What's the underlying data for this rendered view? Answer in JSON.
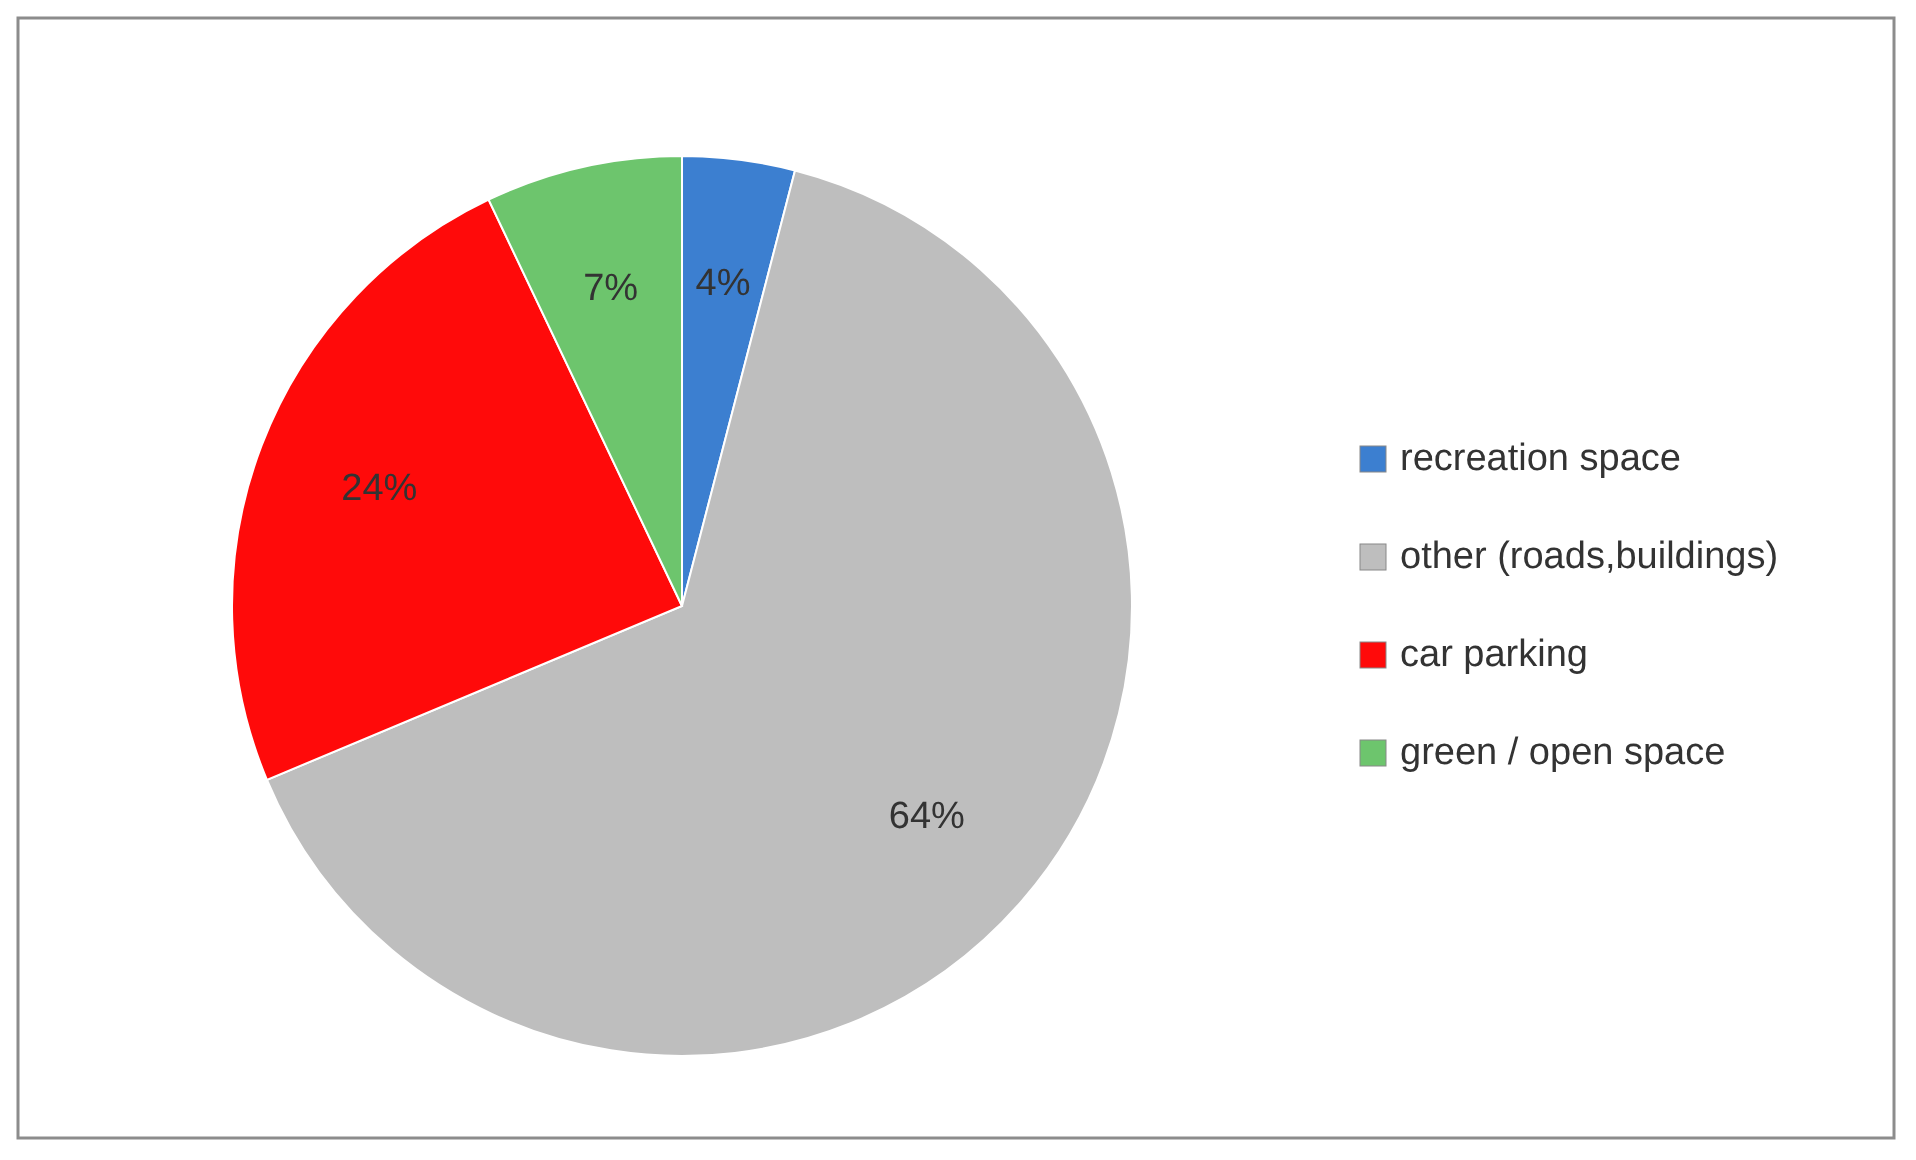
{
  "chart_data": {
    "type": "pie",
    "categories": [
      "recreation space",
      "other (roads,buildings)",
      "car parking",
      "green / open space"
    ],
    "values": [
      4,
      64,
      24,
      7
    ],
    "colors": [
      "#3c7fd0",
      "#bebebe",
      "#ff0a0a",
      "#6dc56d"
    ],
    "value_labels": [
      "4%",
      "64%",
      "24%",
      "7%"
    ],
    "legend": "right"
  }
}
